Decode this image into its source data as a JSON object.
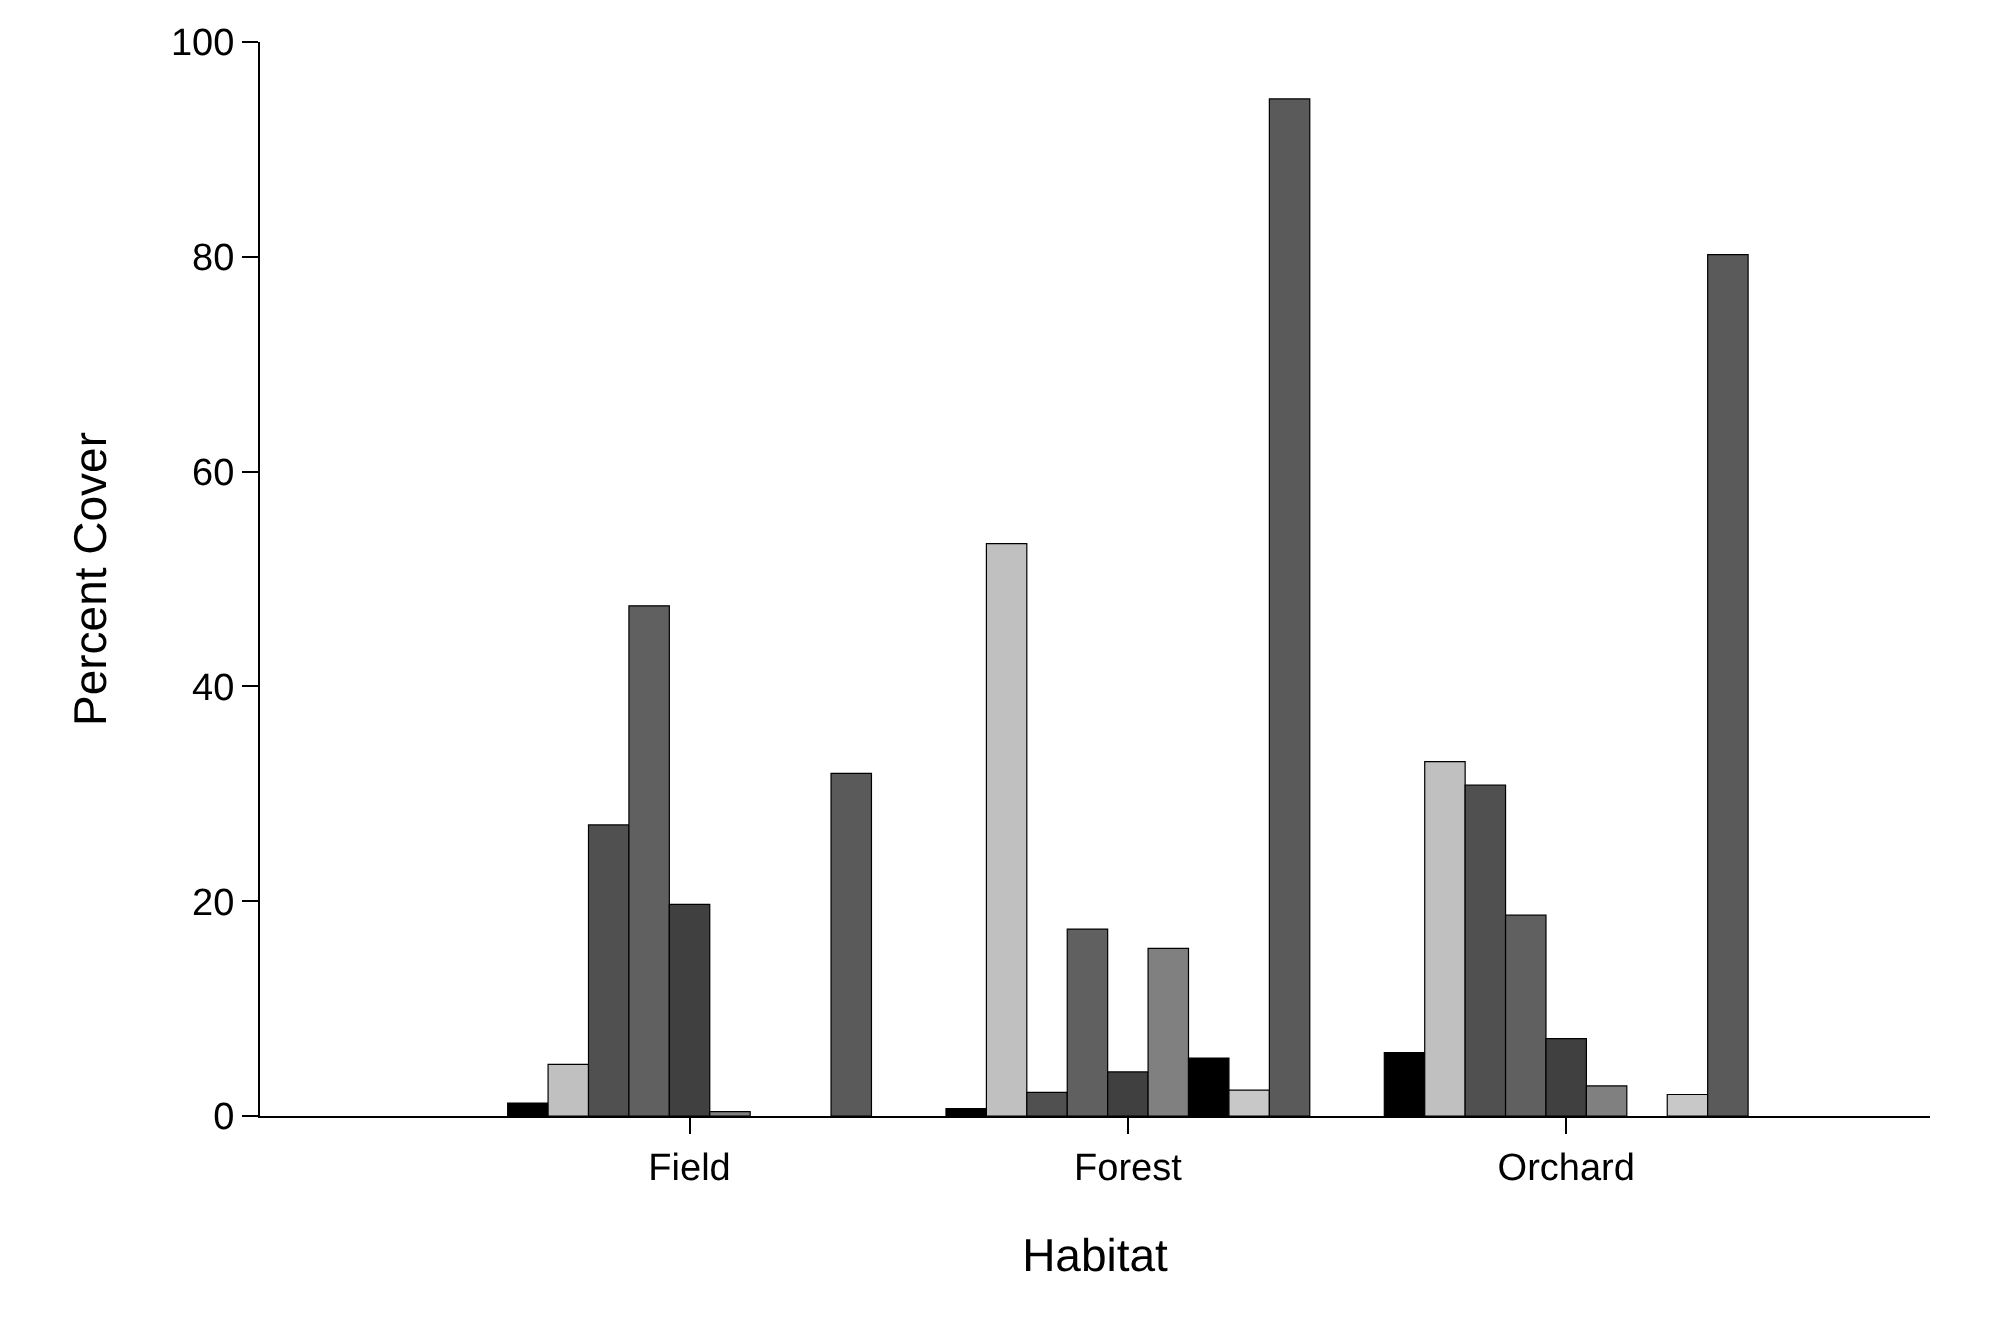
{
  "chart_data": {
    "type": "bar",
    "xlabel": "Habitat",
    "ylabel": "Percent Cover",
    "categories": [
      "Field",
      "Forest",
      "Orchard"
    ],
    "series": [
      {
        "color": "#000000",
        "values": [
          1.2,
          0.7,
          5.9
        ]
      },
      {
        "color": "#c0c0c0",
        "values": [
          4.8,
          53.3,
          33.0
        ]
      },
      {
        "color": "#505050",
        "values": [
          27.1,
          2.2,
          30.8
        ]
      },
      {
        "color": "#606060",
        "values": [
          47.5,
          17.4,
          18.7
        ]
      },
      {
        "color": "#404040",
        "values": [
          19.7,
          4.1,
          7.2
        ]
      },
      {
        "color": "#808080",
        "values": [
          0.4,
          15.6,
          2.8
        ]
      },
      {
        "color": "#000000",
        "values": [
          null,
          5.4,
          null
        ]
      },
      {
        "color": "#c8c8c8",
        "values": [
          null,
          2.4,
          2.0
        ]
      },
      {
        "color": "#5a5a5a",
        "values": [
          31.9,
          94.7,
          80.2
        ]
      }
    ],
    "ylim": [
      0,
      100
    ],
    "yticks": [
      0,
      20,
      40,
      60,
      80,
      100
    ]
  }
}
